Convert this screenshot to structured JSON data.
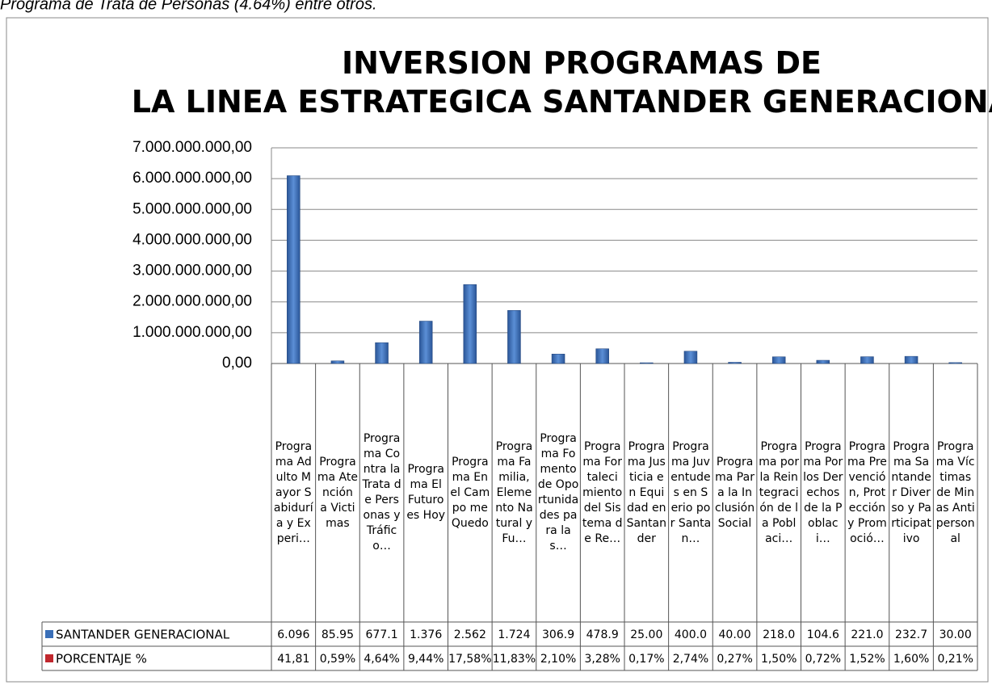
{
  "header_text": "Programa de Trata de Personas (4.64%) entre otros.",
  "chart_data": {
    "type": "bar",
    "title": "INVERSION PROGRAMAS DE LA LINEA ESTRATEGICA SANTANDER GENERACIONAL",
    "categories": [
      "Programa Adulto Mayor Sabiduría y Experi…",
      "Programa Atención a Victimas",
      "Programa Contra la Trata de Personas y Tráfico…",
      "Programa El Futuro es Hoy",
      "Programa En el Campo me Quedo",
      "Programa Familia, Elemento Natural y Fu…",
      "Programa Fomento de Oportunidades para las…",
      "Programa Fortalecimiento del Sistema de Re…",
      "Programa Justicia en Equidad en Santander",
      "Programa Juventudes en Serio por Santan…",
      "Programa Para la Inclusión Social",
      "Programa por la Reintegración de la Poblaci…",
      "Programa Por los Derechos de la Poblaci…",
      "Programa Prevención, Protección y Promoció…",
      "Programa Santander Diverso y Participativo",
      "Programa Víctimas de Minas Antipersonal"
    ],
    "series": [
      {
        "name": "SANTANDER GENERACIONAL",
        "color": "#3a6fb8",
        "values": [
          6096000000,
          85950000,
          677100000,
          1376000000,
          2562000000,
          1724000000,
          306900000,
          478900000,
          25000000,
          400000000,
          40000000,
          218000000,
          104600000,
          221000000,
          232700000,
          30000000
        ],
        "value_labels": [
          "6.096",
          "85.95",
          "677.1",
          "1.376",
          "2.562",
          "1.724",
          "306.9",
          "478.9",
          "25.00",
          "400.0",
          "40.00",
          "218.0",
          "104.6",
          "221.0",
          "232.7",
          "30.00"
        ]
      },
      {
        "name": "PORCENTAJE %",
        "color": "#c0272d",
        "values": [
          41.81,
          0.59,
          4.64,
          9.44,
          17.58,
          11.83,
          2.1,
          3.28,
          0.17,
          2.74,
          0.27,
          1.5,
          0.72,
          1.52,
          1.6,
          0.21
        ],
        "value_labels": [
          "41,81",
          "0,59%",
          "4,64%",
          "9,44%",
          "17,58%",
          "11,83%",
          "2,10%",
          "3,28%",
          "0,17%",
          "2,74%",
          "0,27%",
          "1,50%",
          "0,72%",
          "1,52%",
          "1,60%",
          "0,21%"
        ]
      }
    ],
    "ylim": [
      0,
      7000000000
    ],
    "yticks": [
      {
        "value": 0,
        "label": "0,00"
      },
      {
        "value": 1000000000,
        "label": "1.000.000.000,00"
      },
      {
        "value": 2000000000,
        "label": "2.000.000.000,00"
      },
      {
        "value": 3000000000,
        "label": "3.000.000.000,00"
      },
      {
        "value": 4000000000,
        "label": "4.000.000.000,00"
      },
      {
        "value": 5000000000,
        "label": "5.000.000.000,00"
      },
      {
        "value": 6000000000,
        "label": "6.000.000.000,00"
      },
      {
        "value": 7000000000,
        "label": "7.000.000.000,00"
      }
    ],
    "grid": true
  }
}
